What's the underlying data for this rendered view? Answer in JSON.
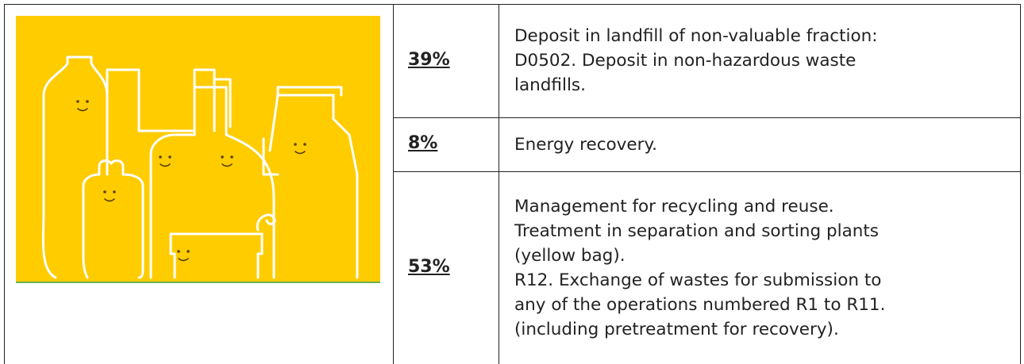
{
  "table": {
    "rows": [
      {
        "percent": "39%",
        "lines": [
          "Deposit in landfill of non-valuable fraction:",
          "D0502. Deposit in non-hazardous waste",
          "landfills."
        ]
      },
      {
        "percent": "8%",
        "lines": [
          "Energy recovery."
        ]
      },
      {
        "percent": "53%",
        "lines": [
          "Management for recycling and reuse.",
          "Treatment in separation and sorting plants",
          "(yellow bag).",
          "R12. Exchange of wastes for submission to",
          "any of the operations numbered R1 to R11.",
          "(including pretreatment for recovery)."
        ]
      }
    ]
  }
}
